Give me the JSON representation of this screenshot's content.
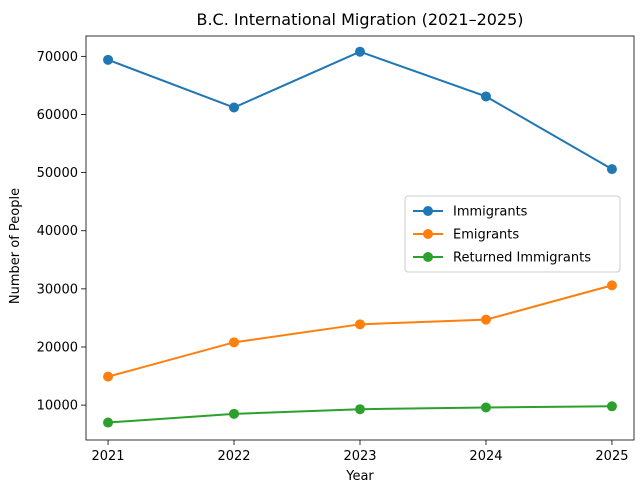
{
  "chart_data": {
    "type": "line",
    "title": "B.C. International Migration (2021–2025)",
    "xlabel": "Year",
    "ylabel": "Number of People",
    "categories": [
      "2021",
      "2022",
      "2023",
      "2024",
      "2025"
    ],
    "x": [
      2021,
      2022,
      2023,
      2024,
      2025
    ],
    "xlim": [
      2020.825,
      2025.175
    ],
    "ylim": [
      4000,
      73500
    ],
    "yticks": [
      10000,
      20000,
      30000,
      40000,
      50000,
      60000,
      70000
    ],
    "ytick_labels": [
      "10000",
      "20000",
      "30000",
      "40000",
      "50000",
      "60000",
      "70000"
    ],
    "grid": false,
    "legend_position": "center-right",
    "series": [
      {
        "name": "Immigrants",
        "color": "#1f77b4",
        "values": [
          69400,
          61200,
          70800,
          63100,
          50600
        ]
      },
      {
        "name": "Emigrants",
        "color": "#ff7f0e",
        "values": [
          14900,
          20800,
          23900,
          24700,
          30600
        ]
      },
      {
        "name": "Returned Immigrants",
        "color": "#2ca02c",
        "values": [
          7000,
          8500,
          9300,
          9600,
          9800
        ]
      }
    ]
  }
}
